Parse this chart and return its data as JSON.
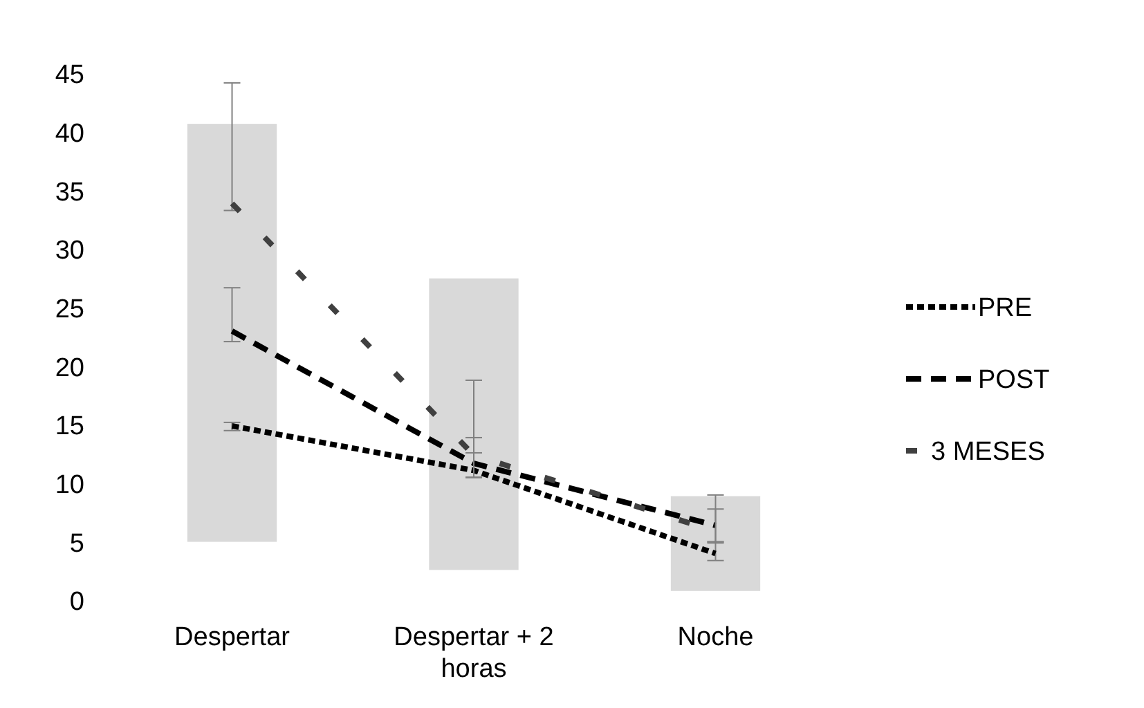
{
  "chart_data": {
    "type": "bar",
    "categories": [
      "Despertar",
      "Despertar + 2 horas",
      "Noche"
    ],
    "ylim": [
      0,
      45
    ],
    "yticks": [
      0,
      5,
      10,
      15,
      20,
      25,
      30,
      35,
      40,
      45
    ],
    "legend": "right",
    "marker": "none",
    "series": [
      {
        "color": "#d9d9d9",
        "values": [
          35.7,
          24.9,
          8.1
        ],
        "base": [
          5.1,
          2.7,
          0.9
        ]
      },
      {
        "type": "line",
        "name": "PRE",
        "color": "#000000",
        "line_style": "dotted",
        "values": [
          15.0,
          11.2,
          4.1
        ],
        "errors": [
          [
            14.6,
            15.3
          ],
          [
            10.6,
            12.7
          ],
          [
            3.5,
            5.1
          ]
        ]
      },
      {
        "type": "line",
        "name": "POST",
        "color": "#000000",
        "line_style": "dashed",
        "values": [
          23.1,
          11.8,
          6.5
        ],
        "errors": [
          [
            22.2,
            26.8
          ],
          [
            10.6,
            14.0
          ],
          [
            5.1,
            7.9
          ]
        ]
      },
      {
        "type": "line",
        "name": "3 MESES",
        "color": "#404040",
        "line_style": "sparse",
        "values": [
          34.0,
          12.5,
          6.0
        ],
        "errors": [
          [
            33.4,
            44.3
          ],
          [
            10.6,
            18.9
          ],
          [
            5.0,
            9.1
          ]
        ]
      }
    ]
  }
}
